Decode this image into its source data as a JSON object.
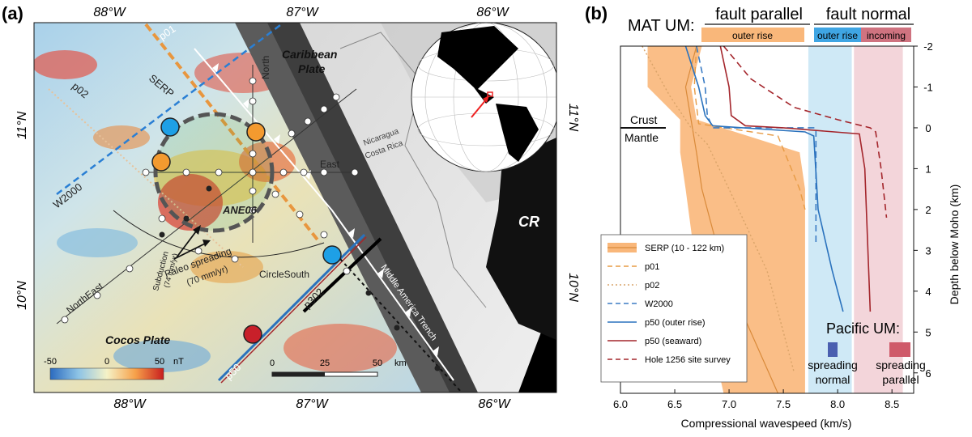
{
  "panel_a": {
    "label": "(a)",
    "lon_ticks": [
      "88°W",
      "87°W",
      "86°W"
    ],
    "lat_ticks": [
      "11°N",
      "10°N"
    ],
    "plates": {
      "caribbean_1": "Caribbean",
      "caribbean_2": "Plate",
      "cocos": "Cocos Plate",
      "cr": "CR"
    },
    "country_labels": {
      "nicaragua": "Nicaragua",
      "costa_rica": "Costa Rica"
    },
    "trench": "Middle America Trench",
    "profiles": {
      "p01": "p01",
      "p02": "p02",
      "w2000": "W2000",
      "p302": "p302",
      "p50": "p50",
      "serp": "SERP"
    },
    "circle_lines": {
      "north": "North",
      "east": "East",
      "northeast": "NorthEast",
      "circlesouth": "CircleSouth"
    },
    "site": "ANE06",
    "motion": {
      "subduction_1": "Subduction",
      "subduction_2": "(74 mm/yr)",
      "paleo_1": "Paleo spreading",
      "paleo_2": "(70 mm/yr)"
    },
    "colorbar": {
      "ticks": [
        "-50",
        "0",
        "50"
      ],
      "unit": "nT"
    },
    "scalebar": {
      "ticks": [
        "0",
        "25",
        "50"
      ],
      "unit": "km"
    }
  },
  "panel_b": {
    "label": "(b)",
    "mat_um": "MAT UM:",
    "header_parallel": "fault parallel",
    "header_normal": "fault normal",
    "band_outer_rise": "outer rise",
    "band_outer_rise_2": "outer rise",
    "band_incoming": "incoming",
    "crust": "Crust",
    "mantle": "Mantle",
    "pacific_um": "Pacific UM:",
    "spreading_normal_1": "spreading",
    "spreading_normal_2": "normal",
    "spreading_parallel_1": "spreading",
    "spreading_parallel_2": "parallel",
    "colors": {
      "serp": "#f9b77a",
      "outer_rise_band": "#cfe9f6",
      "incoming_band": "#f3d5da",
      "p01": "#e79b45",
      "p02": "#d9a368",
      "w2000": "#3b7cc4",
      "p50_outer": "#2a72bd",
      "p50_seaward": "#a4262c",
      "hole1256": "#a4262c"
    }
  },
  "chart_data": {
    "type": "line",
    "xlabel": "Compressional wavespeed (km/s)",
    "ylabel": "Depth below Moho (km)",
    "xlim": [
      6.0,
      8.7
    ],
    "ylim": [
      6.5,
      -2.0
    ],
    "x_ticks": [
      "6.0",
      "6.5",
      "7.0",
      "7.5",
      "8.0",
      "8.5"
    ],
    "y_ticks": [
      "-2",
      "-1",
      "0",
      "1",
      "2",
      "3",
      "4",
      "5",
      "6"
    ],
    "legend_position": "bottom-left",
    "bands": [
      {
        "name": "outer rise",
        "x_range": [
          7.73,
          8.13
        ]
      },
      {
        "name": "incoming",
        "x_range": [
          8.15,
          8.6
        ]
      }
    ],
    "series": [
      {
        "name": "SERP (10 - 122 km)",
        "type": "band",
        "depth": [
          -2.0,
          -1.0,
          -0.2,
          0.6,
          1.5,
          3.5,
          6.5
        ],
        "vmin": [
          6.25,
          6.25,
          6.55,
          6.55,
          6.6,
          6.7,
          6.95
        ],
        "vmax": [
          6.75,
          6.65,
          6.7,
          7.65,
          7.7,
          7.7,
          7.7
        ],
        "vmid": [
          6.7,
          6.6,
          6.65,
          6.7,
          6.75,
          6.95,
          7.45
        ]
      },
      {
        "name": "p01",
        "depth": [
          -2.0,
          -1.0,
          -0.1,
          0.2,
          1.5,
          2.0
        ],
        "velocity": [
          6.7,
          6.68,
          6.72,
          7.45,
          7.65,
          7.7
        ]
      },
      {
        "name": "p02",
        "depth": [
          -2.0,
          -0.8,
          0.0,
          0.4,
          1.5,
          3.5,
          6.0
        ],
        "velocity": [
          6.2,
          6.45,
          6.65,
          6.8,
          7.0,
          7.35,
          7.6
        ]
      },
      {
        "name": "W2000",
        "depth": [
          -2.0,
          -1.0,
          -0.3,
          0.0,
          0.0,
          0.1,
          2.8
        ],
        "velocity": [
          6.7,
          6.78,
          6.8,
          6.85,
          7.8,
          7.8,
          7.8
        ]
      },
      {
        "name": "p50 (outer rise)",
        "depth": [
          -2.0,
          -1.0,
          -0.3,
          -0.05,
          0.1,
          0.2,
          2.0,
          3.5,
          4.5
        ],
        "velocity": [
          6.6,
          6.72,
          6.78,
          6.85,
          7.7,
          7.78,
          7.82,
          7.95,
          8.05
        ]
      },
      {
        "name": "p50 (seaward)",
        "depth": [
          -2.0,
          -1.0,
          -0.3,
          -0.05,
          0.0,
          0.15,
          1.0,
          4.5
        ],
        "velocity": [
          6.92,
          7.0,
          7.02,
          7.15,
          7.5,
          8.2,
          8.25,
          8.3
        ]
      },
      {
        "name": "Hole 1256 site survey",
        "depth": [
          -2.0,
          -1.2,
          -0.5,
          -0.2,
          0.0,
          0.1,
          1.0,
          2.2
        ],
        "velocity": [
          6.95,
          7.2,
          7.6,
          8.0,
          8.3,
          8.35,
          8.4,
          8.45
        ]
      }
    ]
  }
}
